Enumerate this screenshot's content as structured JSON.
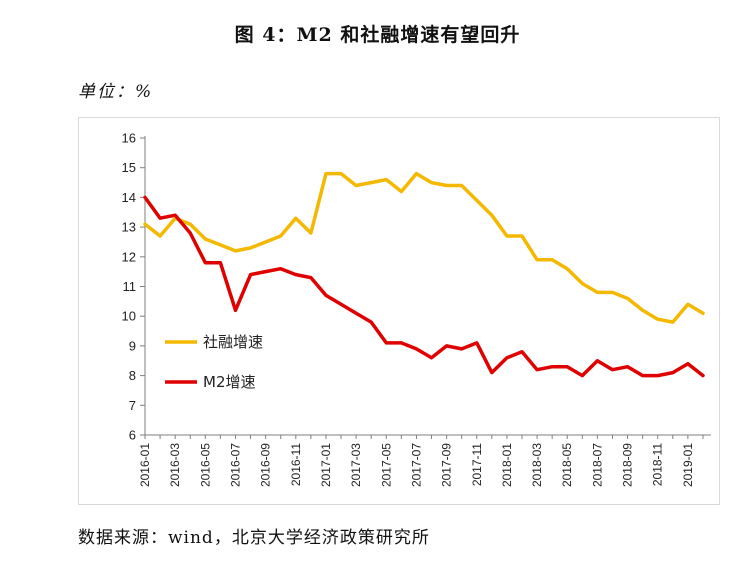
{
  "title": "图 4：M2 和社融增速有望回升",
  "unit_label": "单位：%",
  "source": "数据来源：wind，北京大学经济政策研究所",
  "colors": {
    "shrong": "#f5b800",
    "m2": "#e00000",
    "axis": "#7f7f7f"
  },
  "chart_data": {
    "type": "line",
    "title": "M2 和社融增速有望回升",
    "ylabel": "单位：%",
    "ylim": [
      6,
      16
    ],
    "yticks": [
      6,
      7,
      8,
      9,
      10,
      11,
      12,
      13,
      14,
      15,
      16
    ],
    "x": [
      "2016-01",
      "2016-02",
      "2016-03",
      "2016-04",
      "2016-05",
      "2016-06",
      "2016-07",
      "2016-08",
      "2016-09",
      "2016-10",
      "2016-11",
      "2016-12",
      "2017-01",
      "2017-02",
      "2017-03",
      "2017-04",
      "2017-05",
      "2017-06",
      "2017-07",
      "2017-08",
      "2017-09",
      "2017-10",
      "2017-11",
      "2017-12",
      "2018-01",
      "2018-02",
      "2018-03",
      "2018-04",
      "2018-05",
      "2018-06",
      "2018-07",
      "2018-08",
      "2018-09",
      "2018-10",
      "2018-11",
      "2018-12",
      "2019-01",
      "2019-02"
    ],
    "xtick_labels": [
      "2016-01",
      "2016-03",
      "2016-05",
      "2016-07",
      "2016-09",
      "2016-11",
      "2017-01",
      "2017-03",
      "2017-05",
      "2017-07",
      "2017-09",
      "2017-11",
      "2018-01",
      "2018-03",
      "2018-05",
      "2018-07",
      "2018-09",
      "2018-11",
      "2019-01"
    ],
    "legend_position": "left-middle",
    "series": [
      {
        "name": "社融增速",
        "color": "#f5b800",
        "values": [
          13.1,
          12.7,
          13.3,
          13.1,
          12.6,
          12.4,
          12.2,
          12.3,
          12.5,
          12.7,
          13.3,
          12.8,
          14.8,
          14.8,
          14.4,
          14.5,
          14.6,
          14.2,
          14.8,
          14.5,
          14.4,
          14.4,
          13.9,
          13.4,
          12.7,
          12.7,
          11.9,
          11.9,
          11.6,
          11.1,
          10.8,
          10.8,
          10.6,
          10.2,
          9.9,
          9.8,
          10.4,
          10.1
        ]
      },
      {
        "name": "M2增速",
        "color": "#e00000",
        "values": [
          14.0,
          13.3,
          13.4,
          12.8,
          11.8,
          11.8,
          10.2,
          11.4,
          11.5,
          11.6,
          11.4,
          11.3,
          10.7,
          10.4,
          10.1,
          9.8,
          9.1,
          9.1,
          8.9,
          8.6,
          9.0,
          8.9,
          9.1,
          8.1,
          8.6,
          8.8,
          8.2,
          8.3,
          8.3,
          8.0,
          8.5,
          8.2,
          8.3,
          8.0,
          8.0,
          8.1,
          8.4,
          8.0
        ]
      }
    ]
  }
}
